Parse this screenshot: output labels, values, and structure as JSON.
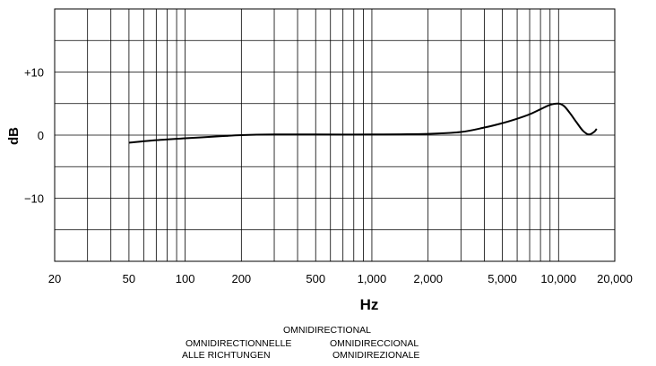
{
  "chart_data": {
    "type": "line",
    "title": "",
    "xlabel": "Hz",
    "ylabel": "dB",
    "x_scale": "log",
    "xlim": [
      20,
      20000
    ],
    "ylim": [
      -20,
      20
    ],
    "grid": true,
    "x_ticks": [
      {
        "value": 20,
        "label": "20"
      },
      {
        "value": 50,
        "label": "50"
      },
      {
        "value": 100,
        "label": "100"
      },
      {
        "value": 200,
        "label": "200"
      },
      {
        "value": 500,
        "label": "500"
      },
      {
        "value": 1000,
        "label": "1,000"
      },
      {
        "value": 2000,
        "label": "2,000"
      },
      {
        "value": 5000,
        "label": "5,000"
      },
      {
        "value": 10000,
        "label": "10,000"
      },
      {
        "value": 20000,
        "label": "20,000"
      }
    ],
    "y_ticks": [
      {
        "value": 10,
        "label": "+10"
      },
      {
        "value": 0,
        "label": "0"
      },
      {
        "value": -10,
        "label": "−10"
      }
    ],
    "series": [
      {
        "color": "#000000",
        "x": [
          50,
          70,
          100,
          150,
          200,
          300,
          500,
          1000,
          2000,
          3000,
          4000,
          5000,
          6000,
          7000,
          8000,
          9000,
          10000,
          10700,
          11500,
          12500,
          13500,
          14500,
          15500,
          16000
        ],
        "y": [
          -1.2,
          -0.8,
          -0.5,
          -0.2,
          0,
          0.1,
          0.1,
          0.1,
          0.2,
          0.5,
          1.2,
          1.9,
          2.6,
          3.3,
          4.1,
          4.8,
          5.0,
          4.6,
          3.5,
          2.0,
          0.7,
          0.1,
          0.5,
          1.0
        ]
      }
    ]
  },
  "captions": {
    "line1": "OMNIDIRECTIONAL",
    "line2_left": "OMNIDIRECTIONNELLE",
    "line2_right": "OMNIDIRECCIONAL",
    "line3_left": "ALLE RICHTUNGEN",
    "line3_right": "OMNIDIREZIONALE"
  }
}
